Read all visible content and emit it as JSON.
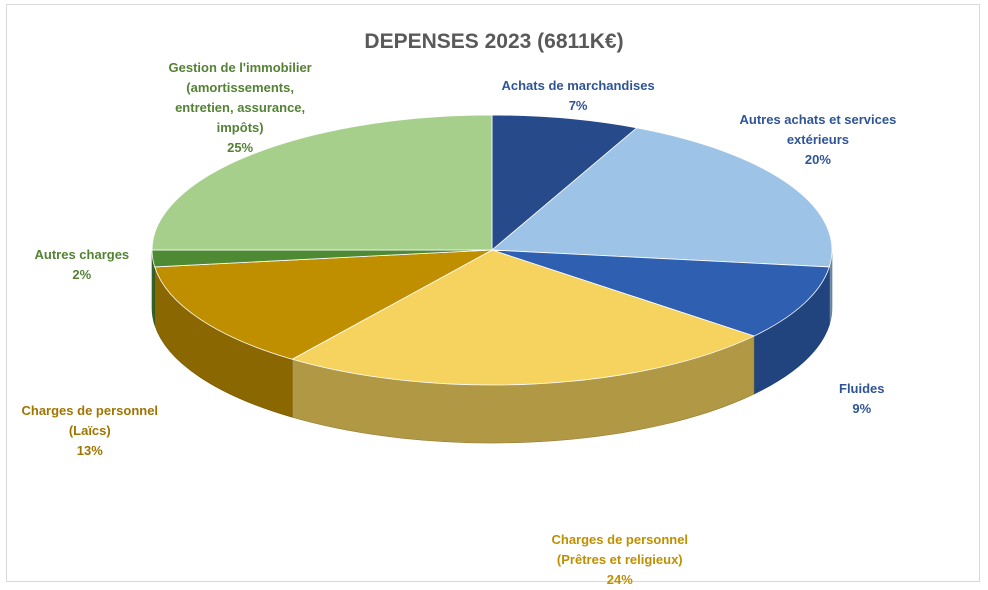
{
  "chart_data": {
    "type": "pie",
    "title": "DEPENSES 2023 (6811K€)",
    "slices": [
      {
        "lines": [
          "Achats de marchandises"
        ],
        "value": 7,
        "pct": "7%",
        "color": "#264a8a",
        "label_color": "#2f5496"
      },
      {
        "lines": [
          "Autres achats et services",
          "extérieurs"
        ],
        "value": 20,
        "pct": "20%",
        "color": "#9dc3e6",
        "label_color": "#2f5496"
      },
      {
        "lines": [
          "Fluides"
        ],
        "value": 9,
        "pct": "9%",
        "color": "#2e5fb0",
        "label_color": "#2f5496"
      },
      {
        "lines": [
          "Charges de personnel",
          "(Prêtres et religieux)"
        ],
        "value": 24,
        "pct": "24%",
        "color": "#f6d35e",
        "label_color": "#bf8f00"
      },
      {
        "lines": [
          "Charges de personnel",
          "(Laïcs)"
        ],
        "value": 13,
        "pct": "13%",
        "color": "#c08f00",
        "label_color": "#a07400"
      },
      {
        "lines": [
          "Autres charges"
        ],
        "value": 2,
        "pct": "2%",
        "color": "#4e8a34",
        "label_color": "#548235"
      },
      {
        "lines": [
          "Gestion de l'immobilier",
          "(amortissements,",
          "entretien, assurance,",
          "impôts)"
        ],
        "value": 25,
        "pct": "25%",
        "color": "#a6cf8c",
        "label_color": "#548235"
      }
    ]
  }
}
